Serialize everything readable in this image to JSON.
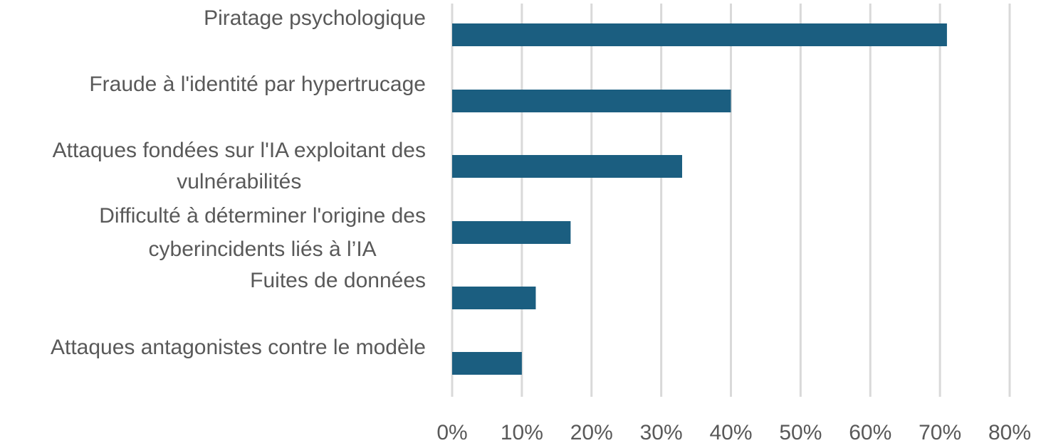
{
  "chart_data": {
    "type": "bar",
    "orientation": "horizontal",
    "categories": [
      [
        "Piratage psychologique"
      ],
      [
        "Fraude à l'identité par hypertrucage"
      ],
      [
        "Attaques fondées sur l'IA exploitant des",
        "vulnérabilités"
      ],
      [
        "Difficulté à déterminer l'origine des",
        "cyberincidents liés à l’IA"
      ],
      [
        "Fuites de données"
      ],
      [
        "Attaques antagonistes contre le modèle"
      ]
    ],
    "values": [
      71,
      40,
      33,
      17,
      12,
      10
    ],
    "xlim": [
      0,
      80
    ],
    "xticks": [
      0,
      10,
      20,
      30,
      40,
      50,
      60,
      70,
      80
    ],
    "xtick_labels": [
      "0%",
      "10%",
      "20%",
      "30%",
      "40%",
      "50%",
      "60%",
      "70%",
      "80%"
    ],
    "grid": true,
    "legend": "none",
    "title": "",
    "xlabel": "",
    "ylabel": "",
    "bar_color": "#1b5e80",
    "grid_color": "#d9d9d9",
    "text_color": "#595959"
  }
}
